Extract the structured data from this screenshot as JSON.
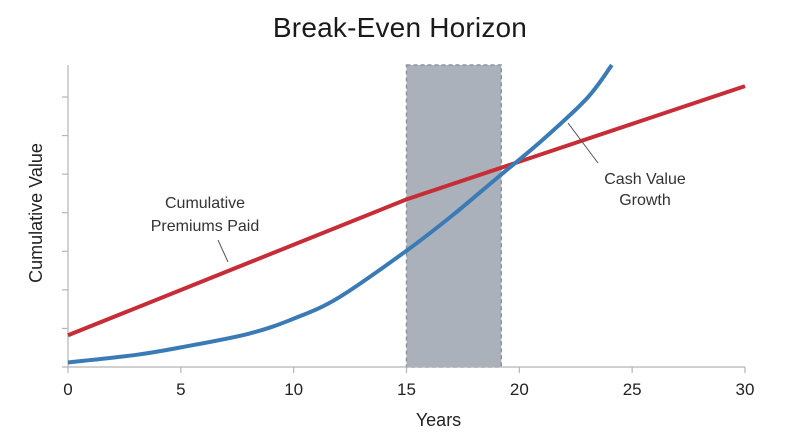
{
  "chart_data": {
    "type": "line",
    "title": "Break-Even Horizon",
    "xlabel": "Years",
    "ylabel": "Cumulative Value",
    "xlim": [
      0,
      30
    ],
    "ylim": [
      0,
      100
    ],
    "xticks": [
      0,
      5,
      10,
      15,
      20,
      25,
      30
    ],
    "grid": false,
    "legend": "none",
    "series": [
      {
        "name": "Cumulative Premiums Paid",
        "color": "#c62d36",
        "x": [
          0,
          15,
          30
        ],
        "y": [
          10.5,
          55.5,
          93
        ]
      },
      {
        "name": "Cash Value Growth",
        "color": "#3a7bb5",
        "x": [
          0,
          3,
          5,
          8,
          10,
          12,
          15,
          17,
          19,
          21,
          23,
          24.1
        ],
        "y": [
          1.5,
          4,
          6.5,
          11,
          16,
          23,
          38.5,
          50,
          62.5,
          75,
          89,
          100
        ]
      }
    ],
    "highlight_region": {
      "x": [
        15,
        19.2
      ],
      "color": "#abb1bb"
    },
    "annotations": [
      {
        "id": "premiums",
        "line1": "Cumulative",
        "line2": "Premiums Paid",
        "series": "Cumulative Premiums Paid"
      },
      {
        "id": "cashvalue",
        "line1": "Cash Value",
        "line2": "Growth",
        "series": "Cash Value Growth"
      }
    ]
  }
}
